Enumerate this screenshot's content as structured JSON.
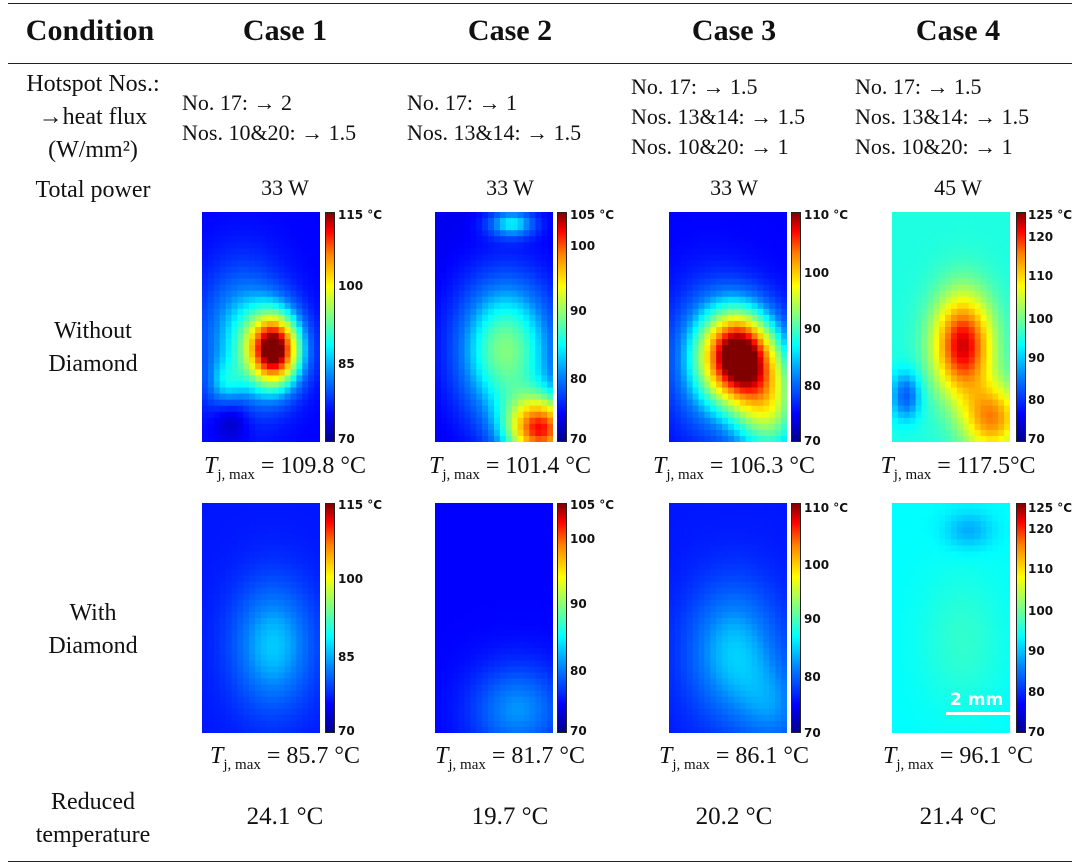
{
  "headers": [
    "Condition",
    "Case 1",
    "Case 2",
    "Case 3",
    "Case 4"
  ],
  "row_labels": {
    "hotspot": [
      "Hotspot Nos.:",
      "→heat flux",
      "(W/mm²)"
    ],
    "total_power": "Total power",
    "without": [
      "Without",
      "Diamond"
    ],
    "with": [
      "With",
      "Diamond"
    ],
    "reduced": [
      "Reduced",
      "temperature"
    ]
  },
  "cases": [
    {
      "flux": [
        "No. 17:  →  2",
        "Nos. 10&20:  → 1.5"
      ],
      "power": "33 W",
      "scale_without": [
        "115 °C",
        "100",
        "85",
        "70"
      ],
      "scale_with": [
        "115 °C",
        "100",
        "85",
        "70"
      ],
      "tmax_without": "= 109.8 °C",
      "tmax_with": "= 85.7 °C",
      "reduced": "24.1 °C"
    },
    {
      "flux": [
        "No. 17:  → 1",
        "Nos. 13&14:  → 1.5"
      ],
      "power": "33 W",
      "scale_without": [
        "105 °C",
        "100",
        "90",
        "80",
        "70"
      ],
      "scale_with": [
        "105 °C",
        "100",
        "90",
        "80",
        "70"
      ],
      "tmax_without": "= 101.4 °C",
      "tmax_with": "= 81.7 °C",
      "reduced": "19.7 °C"
    },
    {
      "flux": [
        "No. 17:  → 1.5",
        "Nos. 13&14: → 1.5",
        "Nos. 10&20:  → 1"
      ],
      "power": "33 W",
      "scale_without": [
        "110 °C",
        "100",
        "90",
        "80",
        "70"
      ],
      "scale_with": [
        "110 °C",
        "100",
        "90",
        "80",
        "70"
      ],
      "tmax_without": "= 106.3 °C",
      "tmax_with": "= 86.1 °C",
      "reduced": "20.2 °C"
    },
    {
      "flux": [
        "No. 17:  → 1.5",
        "Nos. 13&14:  → 1.5",
        "Nos. 10&20:  → 1"
      ],
      "power": "45 W",
      "scale_without": [
        "125 °C",
        "120",
        "110",
        "100",
        "90",
        "80",
        "70"
      ],
      "scale_with": [
        "125 °C",
        "120",
        "110",
        "100",
        "90",
        "80",
        "70"
      ],
      "tmax_without": "= 117.5°C",
      "tmax_with": "= 96.1 °C",
      "reduced": "21.4 °C"
    }
  ],
  "tmax_symbol": "T",
  "tmax_subscript": "j, max",
  "scale_bar_label": "2 mm"
}
